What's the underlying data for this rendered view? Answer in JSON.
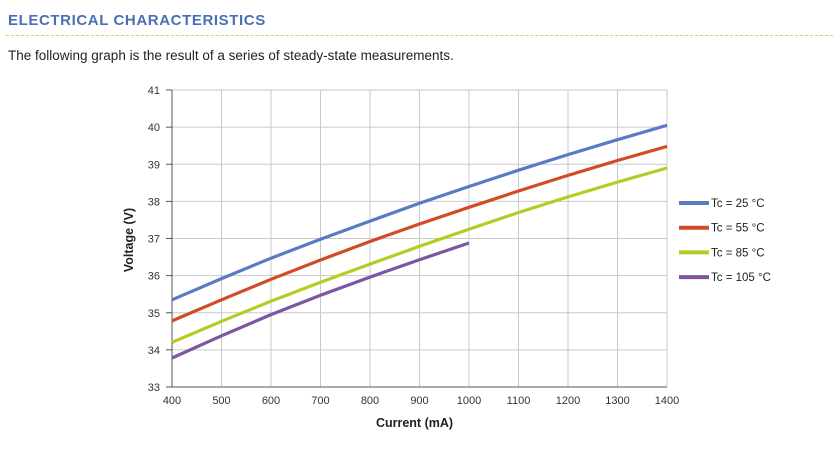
{
  "header": {
    "section_title": "ELECTRICAL CHARACTERISTICS",
    "intro_text": "The following graph is the result of a series of steady-state measurements."
  },
  "chart_data": {
    "type": "line",
    "xlabel": "Current (mA)",
    "ylabel": "Voltage (V)",
    "xlim": [
      400,
      1400
    ],
    "ylim": [
      33,
      41
    ],
    "x_ticks": [
      400,
      500,
      600,
      700,
      800,
      900,
      1000,
      1100,
      1200,
      1300,
      1400
    ],
    "y_ticks": [
      33,
      34,
      35,
      36,
      37,
      38,
      39,
      40,
      41
    ],
    "grid": true,
    "legend_position": "right",
    "series": [
      {
        "name": "Tc = 25 °C",
        "color": "#5b7ac4",
        "points": [
          [
            400,
            35.35
          ],
          [
            500,
            35.92
          ],
          [
            600,
            36.47
          ],
          [
            700,
            36.98
          ],
          [
            800,
            37.47
          ],
          [
            900,
            37.95
          ],
          [
            1000,
            38.4
          ],
          [
            1100,
            38.84
          ],
          [
            1200,
            39.26
          ],
          [
            1300,
            39.66
          ],
          [
            1400,
            40.05
          ]
        ]
      },
      {
        "name": "Tc = 55 °C",
        "color": "#d24b26",
        "points": [
          [
            400,
            34.78
          ],
          [
            500,
            35.35
          ],
          [
            600,
            35.9
          ],
          [
            700,
            36.42
          ],
          [
            800,
            36.92
          ],
          [
            900,
            37.39
          ],
          [
            1000,
            37.84
          ],
          [
            1100,
            38.28
          ],
          [
            1200,
            38.7
          ],
          [
            1300,
            39.1
          ],
          [
            1400,
            39.48
          ]
        ]
      },
      {
        "name": "Tc = 85 °C",
        "color": "#b6cb24",
        "points": [
          [
            400,
            34.2
          ],
          [
            500,
            34.77
          ],
          [
            600,
            35.31
          ],
          [
            700,
            35.82
          ],
          [
            800,
            36.31
          ],
          [
            900,
            36.79
          ],
          [
            1000,
            37.25
          ],
          [
            1100,
            37.7
          ],
          [
            1200,
            38.12
          ],
          [
            1300,
            38.52
          ],
          [
            1400,
            38.9
          ]
        ]
      },
      {
        "name": "Tc = 105 °C",
        "color": "#7d55a3",
        "points": [
          [
            400,
            33.78
          ],
          [
            500,
            34.38
          ],
          [
            600,
            34.95
          ],
          [
            700,
            35.47
          ],
          [
            800,
            35.96
          ],
          [
            900,
            36.43
          ],
          [
            1000,
            36.88
          ]
        ]
      }
    ]
  }
}
